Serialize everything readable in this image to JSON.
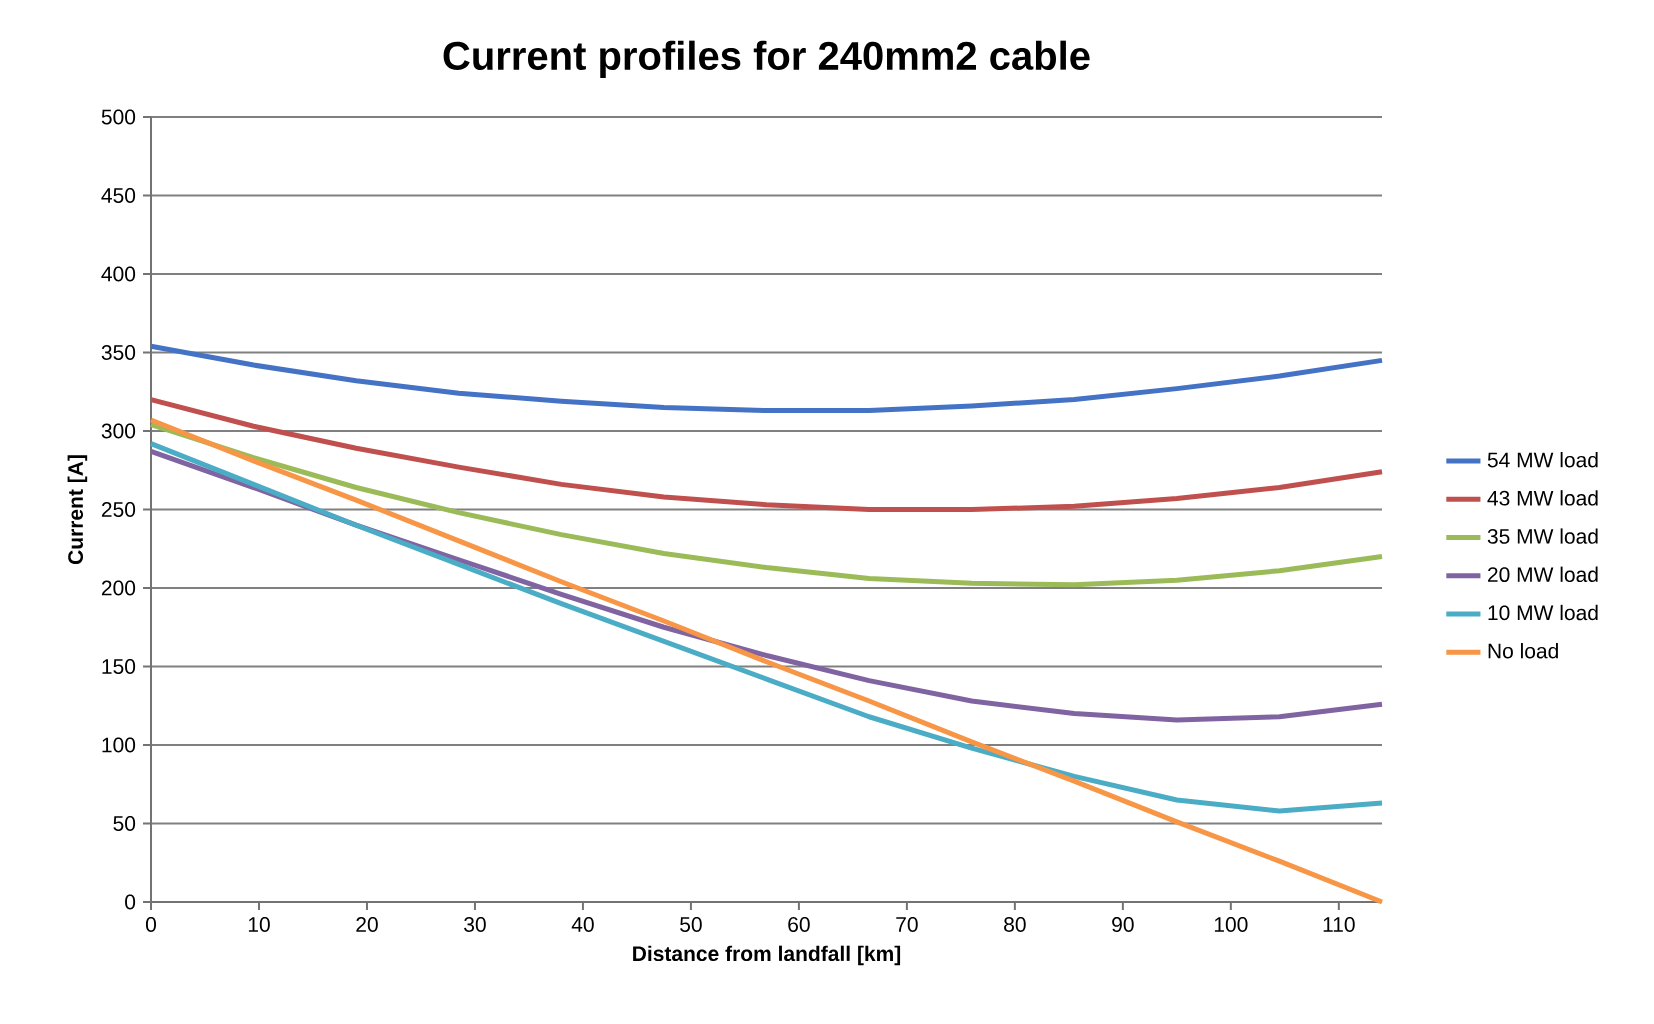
{
  "chart_data": {
    "type": "line",
    "title": "Current profiles for 240mm2 cable",
    "xlabel": "Distance from landfall [km]",
    "ylabel": "Current [A]",
    "x": [
      0,
      9.5,
      19,
      28.5,
      38,
      47.5,
      57,
      66.5,
      76,
      85.5,
      95,
      104.5,
      114
    ],
    "series": [
      {
        "name": "54 MW load",
        "color": "#4472c4",
        "values": [
          354,
          342,
          332,
          324,
          319,
          315,
          313,
          313,
          316,
          320,
          327,
          335,
          345
        ]
      },
      {
        "name": "43 MW load",
        "color": "#c0504d",
        "values": [
          320,
          303,
          289,
          277,
          266,
          258,
          253,
          250,
          250,
          252,
          257,
          264,
          274
        ]
      },
      {
        "name": "35 MW load",
        "color": "#9bbb59",
        "values": [
          304,
          283,
          264,
          248,
          234,
          222,
          213,
          206,
          203,
          202,
          205,
          211,
          220
        ]
      },
      {
        "name": "20 MW load",
        "color": "#8064a2",
        "values": [
          287,
          264,
          240,
          218,
          196,
          175,
          157,
          141,
          128,
          120,
          116,
          118,
          126
        ]
      },
      {
        "name": "10 MW load",
        "color": "#4bacc6",
        "values": [
          292,
          266,
          240,
          215,
          190,
          166,
          142,
          118,
          98,
          80,
          65,
          58,
          63
        ]
      },
      {
        "name": "No load",
        "color": "#f79646",
        "values": [
          307,
          281,
          256,
          230,
          204,
          179,
          153,
          128,
          102,
          77,
          51,
          26,
          0
        ]
      }
    ],
    "xlim": [
      0,
      114
    ],
    "xticks": [
      0,
      10,
      20,
      30,
      40,
      50,
      60,
      70,
      80,
      90,
      100,
      110
    ],
    "ylim": [
      0,
      500
    ],
    "yticks": [
      0,
      50,
      100,
      150,
      200,
      250,
      300,
      350,
      400,
      450,
      500
    ],
    "grid": "y",
    "legend": "right",
    "marker": "none",
    "line_style": "solid"
  }
}
